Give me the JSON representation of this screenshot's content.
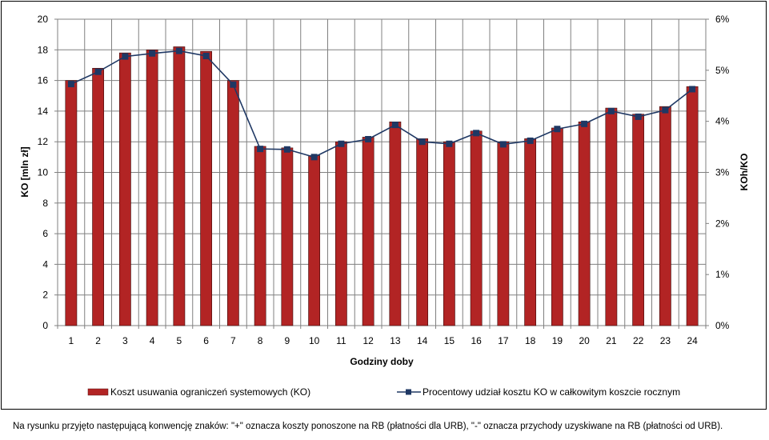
{
  "chart_data": {
    "type": "bar",
    "categories": [
      "1",
      "2",
      "3",
      "4",
      "5",
      "6",
      "7",
      "8",
      "9",
      "10",
      "11",
      "12",
      "13",
      "14",
      "15",
      "16",
      "17",
      "18",
      "19",
      "20",
      "21",
      "22",
      "23",
      "24"
    ],
    "series": [
      {
        "name": "Koszt usuwania ograniczeń systemowych (KO)",
        "type": "bar",
        "axis": "left",
        "color": "#B22424",
        "values": [
          16.0,
          16.8,
          17.8,
          18.0,
          18.2,
          17.9,
          16.0,
          11.7,
          11.6,
          11.1,
          12.0,
          12.3,
          13.3,
          12.2,
          12.0,
          12.7,
          12.0,
          12.2,
          12.9,
          13.3,
          14.2,
          13.8,
          14.3,
          15.6
        ]
      },
      {
        "name": "Procentowy udział kosztu KO w całkowitym koszcie rocznym",
        "type": "line",
        "axis": "right",
        "color": "#1F3864",
        "values": [
          4.73,
          4.97,
          5.27,
          5.33,
          5.38,
          5.28,
          4.72,
          3.46,
          3.45,
          3.3,
          3.56,
          3.65,
          3.93,
          3.6,
          3.56,
          3.77,
          3.55,
          3.62,
          3.85,
          3.95,
          4.2,
          4.09,
          4.22,
          4.63
        ]
      }
    ],
    "xlabel": "Godziny doby",
    "ylabel": "KO [mln zł]",
    "y2label": "KOh/KO",
    "ylim": [
      0,
      20
    ],
    "y2lim": [
      0,
      6
    ],
    "yticks": [
      "0",
      "2",
      "4",
      "6",
      "8",
      "10",
      "12",
      "14",
      "16",
      "18",
      "20"
    ],
    "y2ticks": [
      "0%",
      "1%",
      "2%",
      "3%",
      "4%",
      "5%",
      "6%"
    ],
    "grid": true,
    "legend": "bottom"
  },
  "footnote": "Na rysunku przyjęto następującą konwencję znaków: \"+\" oznacza koszty ponoszone na RB (płatności dla URB), \"-\" oznacza przychody uzyskiwane na RB (płatności od URB)."
}
